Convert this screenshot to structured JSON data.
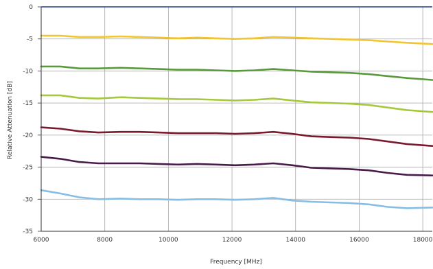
{
  "chart_data": {
    "type": "line",
    "title": "",
    "xlabel": "Frequency [MHz]",
    "ylabel": "Relative Attenuation [dB]",
    "xlim": [
      6000,
      18300
    ],
    "ylim": [
      -35,
      0
    ],
    "xticks": [
      6000,
      8000,
      10000,
      12000,
      14000,
      16000,
      18000
    ],
    "yticks": [
      0,
      -5,
      -10,
      -15,
      -20,
      -25,
      -30,
      -35
    ],
    "grid": true,
    "legend": "none",
    "series": [
      {
        "color": "#f2c530",
        "x": [
          6000,
          6600,
          7200,
          7800,
          8500,
          9100,
          9700,
          10300,
          10900,
          11500,
          12100,
          12700,
          13300,
          13900,
          14500,
          15100,
          15700,
          16300,
          16900,
          17500,
          18300
        ],
        "y": [
          -4.5,
          -4.5,
          -4.7,
          -4.7,
          -4.6,
          -4.7,
          -4.8,
          -4.9,
          -4.8,
          -4.9,
          -5.0,
          -4.9,
          -4.7,
          -4.8,
          -4.9,
          -5.0,
          -5.1,
          -5.2,
          -5.4,
          -5.6,
          -5.8
        ]
      },
      {
        "color": "#5a9a3c",
        "x": [
          6000,
          6600,
          7200,
          7800,
          8500,
          9100,
          9700,
          10300,
          10900,
          11500,
          12100,
          12700,
          13300,
          13900,
          14500,
          15100,
          15700,
          16300,
          16900,
          17500,
          18300
        ],
        "y": [
          -9.3,
          -9.3,
          -9.6,
          -9.6,
          -9.5,
          -9.6,
          -9.7,
          -9.8,
          -9.8,
          -9.9,
          -10.0,
          -9.9,
          -9.7,
          -9.9,
          -10.1,
          -10.2,
          -10.3,
          -10.5,
          -10.8,
          -11.1,
          -11.4
        ]
      },
      {
        "color": "#a4c93b",
        "x": [
          6000,
          6600,
          7200,
          7800,
          8500,
          9100,
          9700,
          10300,
          10900,
          11500,
          12100,
          12700,
          13300,
          13900,
          14500,
          15100,
          15700,
          16300,
          16900,
          17500,
          18300
        ],
        "y": [
          -13.8,
          -13.8,
          -14.2,
          -14.3,
          -14.1,
          -14.2,
          -14.3,
          -14.4,
          -14.4,
          -14.5,
          -14.6,
          -14.5,
          -14.3,
          -14.6,
          -14.9,
          -15.0,
          -15.1,
          -15.3,
          -15.7,
          -16.1,
          -16.4
        ]
      },
      {
        "color": "#7a1a2c",
        "x": [
          6000,
          6600,
          7200,
          7800,
          8500,
          9100,
          9700,
          10300,
          10900,
          11500,
          12100,
          12700,
          13300,
          13900,
          14500,
          15100,
          15700,
          16300,
          16900,
          17500,
          18300
        ],
        "y": [
          -18.8,
          -19.0,
          -19.4,
          -19.6,
          -19.5,
          -19.5,
          -19.6,
          -19.7,
          -19.7,
          -19.7,
          -19.8,
          -19.7,
          -19.5,
          -19.8,
          -20.2,
          -20.3,
          -20.4,
          -20.6,
          -21.0,
          -21.4,
          -21.7
        ]
      },
      {
        "color": "#4a1a4c",
        "x": [
          6000,
          6600,
          7200,
          7800,
          8500,
          9100,
          9700,
          10300,
          10900,
          11500,
          12100,
          12700,
          13300,
          13900,
          14500,
          15100,
          15700,
          16300,
          16900,
          17500,
          18300
        ],
        "y": [
          -23.4,
          -23.7,
          -24.2,
          -24.4,
          -24.4,
          -24.4,
          -24.5,
          -24.6,
          -24.5,
          -24.6,
          -24.7,
          -24.6,
          -24.4,
          -24.7,
          -25.1,
          -25.2,
          -25.3,
          -25.5,
          -25.9,
          -26.2,
          -26.3
        ]
      },
      {
        "color": "#86bde4",
        "x": [
          6000,
          6600,
          7200,
          7800,
          8500,
          9100,
          9700,
          10300,
          10900,
          11500,
          12100,
          12700,
          13300,
          13900,
          14500,
          15100,
          15700,
          16300,
          16900,
          17500,
          18300
        ],
        "y": [
          -28.6,
          -29.1,
          -29.7,
          -30.0,
          -29.9,
          -30.0,
          -30.0,
          -30.1,
          -30.0,
          -30.0,
          -30.1,
          -30.0,
          -29.8,
          -30.2,
          -30.4,
          -30.5,
          -30.6,
          -30.8,
          -31.2,
          -31.4,
          -31.3
        ]
      }
    ]
  }
}
